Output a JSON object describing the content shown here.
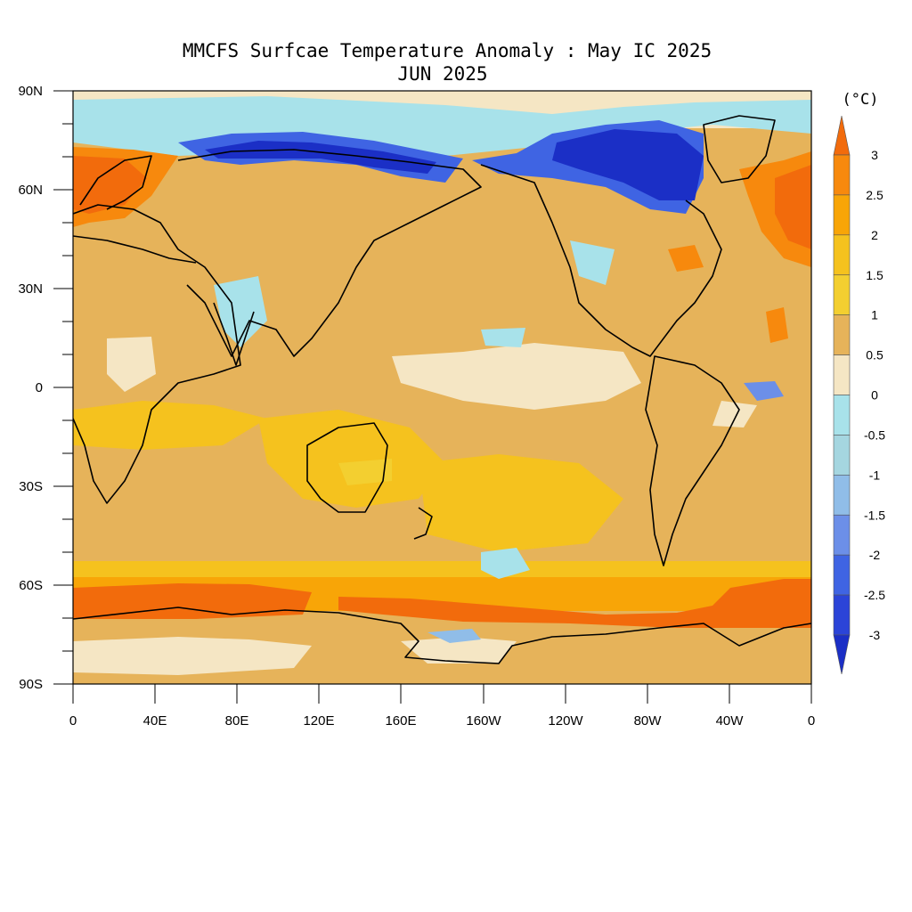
{
  "title": {
    "line1": "MMCFS Surfcae Temperature Anomaly : May IC 2025",
    "line2": "JUN 2025"
  },
  "axes": {
    "lat_ticks": [
      "90N",
      "60N",
      "30N",
      "0",
      "30S",
      "60S",
      "90S"
    ],
    "lon_ticks": [
      "0",
      "40E",
      "80E",
      "120E",
      "160E",
      "160W",
      "120W",
      "80W",
      "40W",
      "0"
    ]
  },
  "colorbar": {
    "unit": "(°C)",
    "labels": [
      "3",
      "2.5",
      "2",
      "1.5",
      "1",
      "0.5",
      "0",
      "-0.5",
      "-1",
      "-1.5",
      "-2",
      "-2.5",
      "-3"
    ],
    "colors": [
      "#f26b0c",
      "#f7890d",
      "#f8a507",
      "#f5c21e",
      "#f3cf30",
      "#e6b35a",
      "#f5e6c4",
      "#a8e2ea",
      "#a5d6e0",
      "#90bde8",
      "#6c8fe8",
      "#3f64e3",
      "#2b44d8",
      "#1b2fc6"
    ],
    "top_arrow_color": "#f26b0c",
    "bottom_arrow_color": "#1b2fc6"
  },
  "chart_data": {
    "type": "heatmap",
    "title": "MMCFS Surfcae Temperature Anomaly : May IC 2025 JUN 2025",
    "xlabel": "",
    "ylabel": "",
    "lon_range": [
      0,
      360
    ],
    "lat_range": [
      -90,
      90
    ],
    "levels": [
      -3,
      -2.5,
      -2,
      -1.5,
      -1,
      -0.5,
      0,
      0.5,
      1,
      1.5,
      2,
      2.5,
      3
    ],
    "unit": "°C",
    "notes": "Contour-filled global anomaly map; most oceans 0.5–1.5, Southern Ocean band 2.5–3, Arctic Eurasia and Canadian Archipelago -2.5 to -3"
  }
}
